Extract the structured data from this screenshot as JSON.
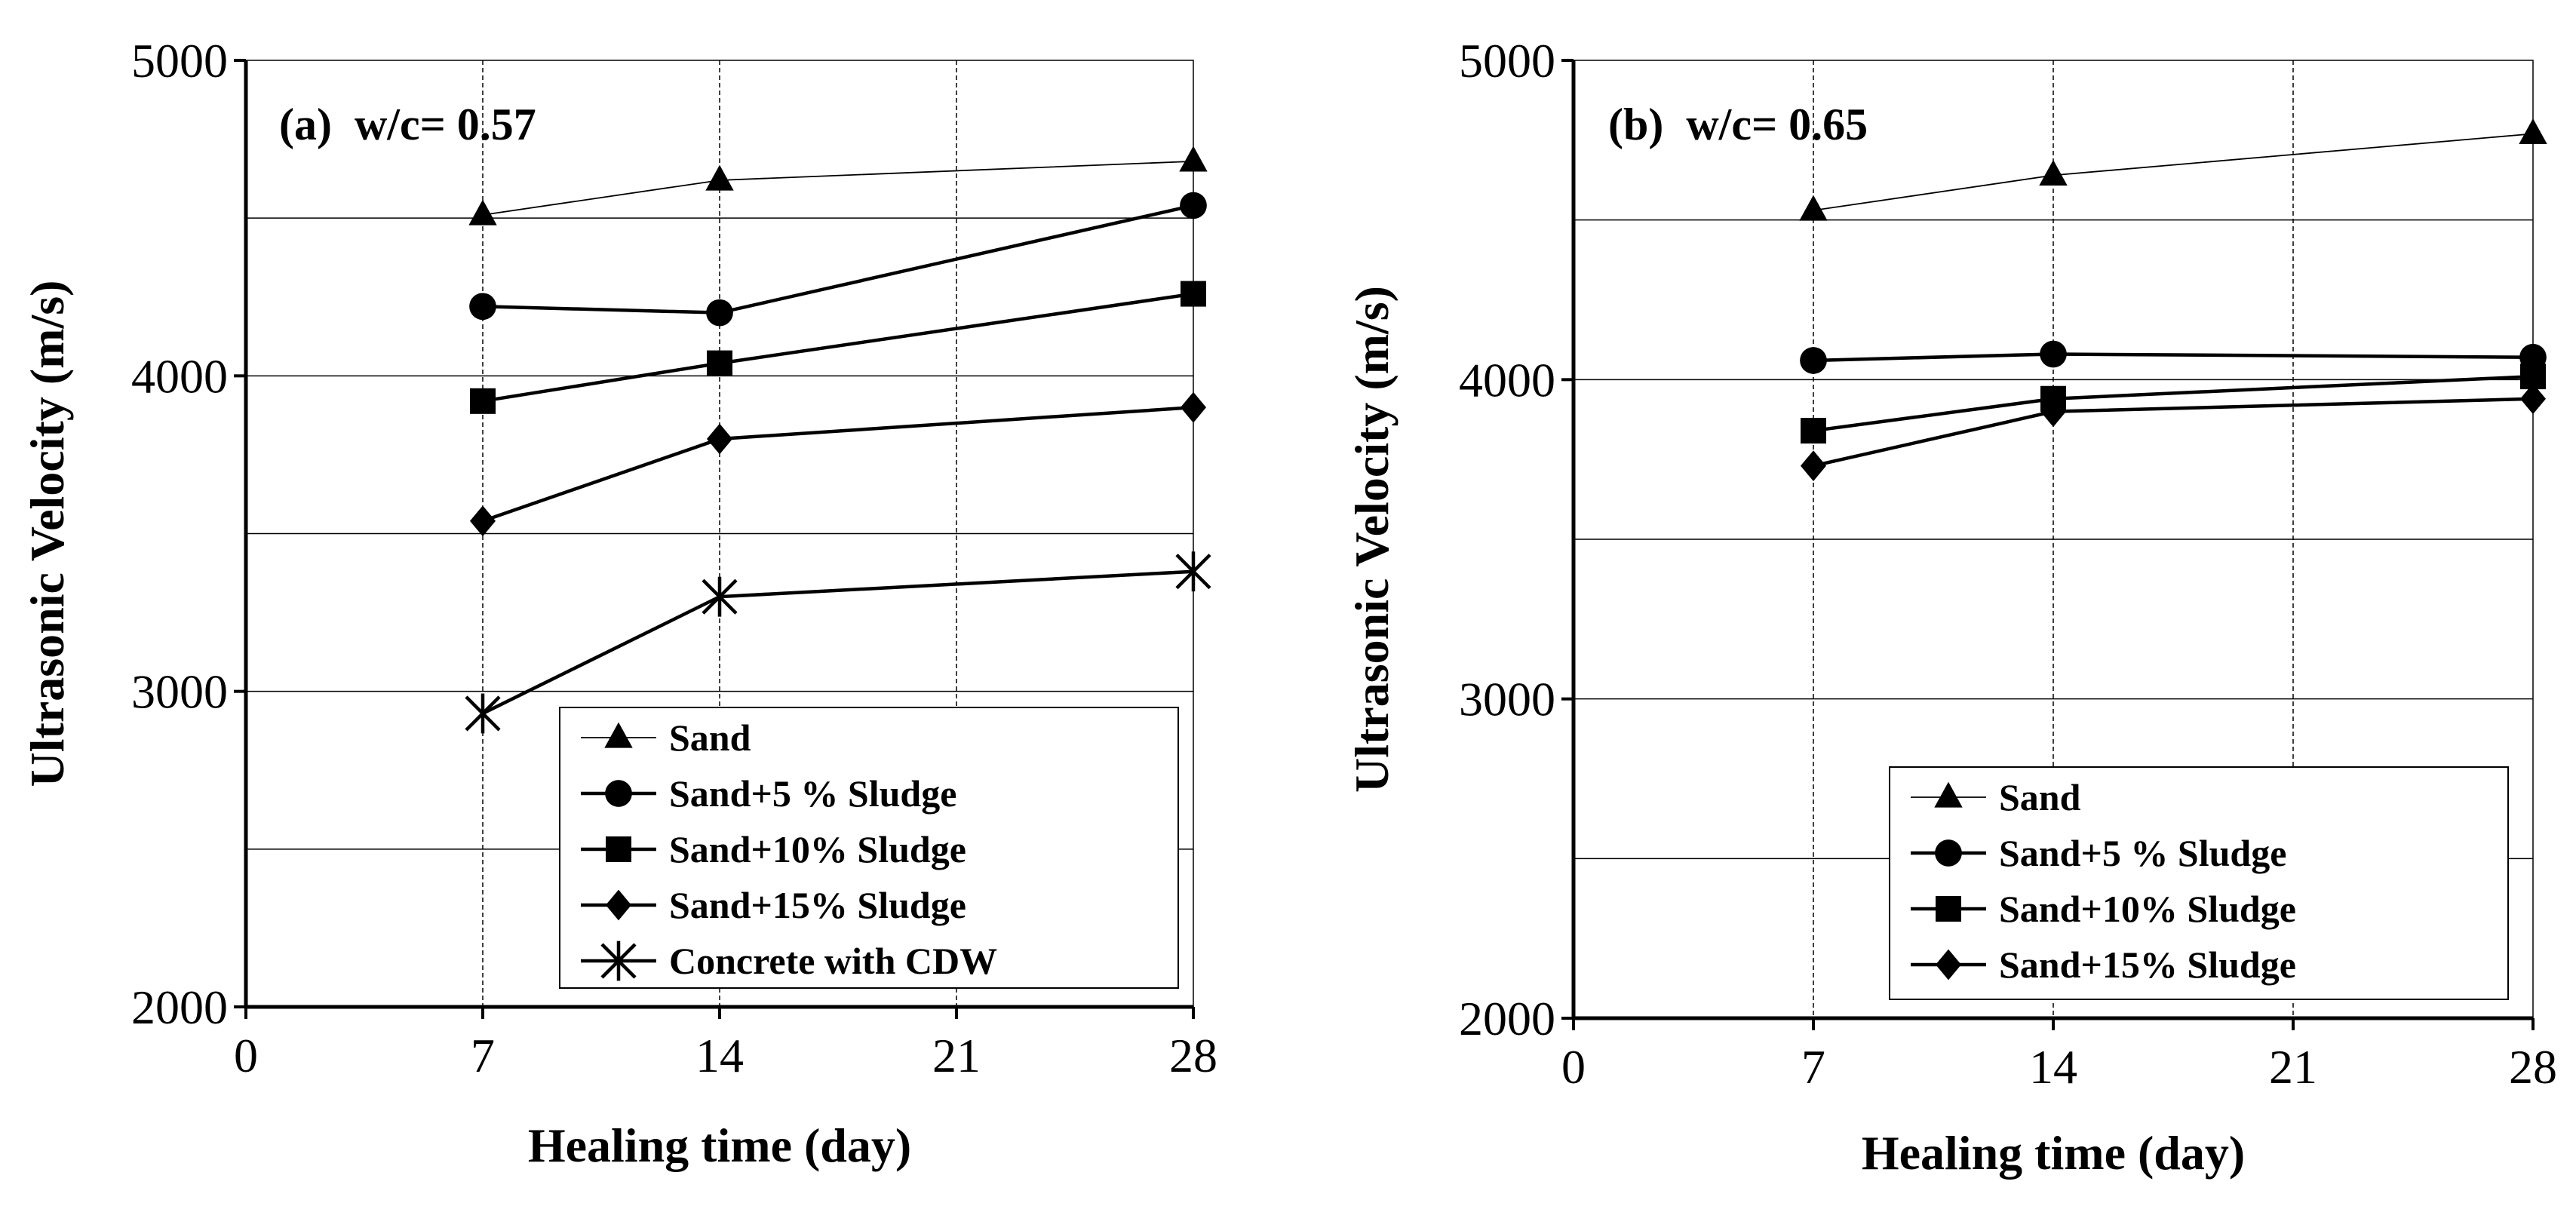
{
  "chart_data": [
    {
      "type": "line",
      "panel_label": "(a)  w/c= 0.57",
      "xlabel": "Healing time (day)",
      "ylabel": "Ultrasonic Velocity (m/s)",
      "xlim": [
        0,
        28
      ],
      "ylim": [
        2000,
        5000
      ],
      "x_ticks": [
        "0",
        "7",
        "14",
        "21",
        "28"
      ],
      "y_ticks": [
        "2000",
        "3000",
        "4000",
        "5000"
      ],
      "y_gridlines": [
        2500,
        3000,
        3500,
        4000,
        4500
      ],
      "x_gridlines": [
        7,
        14,
        21
      ],
      "grid": true,
      "legend_position": "bottom-right",
      "x": [
        7,
        14,
        28
      ],
      "series": [
        {
          "name": "Sand",
          "marker": "triangle",
          "line": "thin",
          "values": [
            4510,
            4620,
            4680
          ]
        },
        {
          "name": "Sand+5 % Sludge",
          "marker": "circle",
          "line": "thick",
          "values": [
            4220,
            4200,
            4540
          ]
        },
        {
          "name": "Sand+10% Sludge",
          "marker": "square",
          "line": "thick",
          "values": [
            3920,
            4040,
            4260
          ]
        },
        {
          "name": "Sand+15% Sludge",
          "marker": "diamond",
          "line": "thick",
          "values": [
            3540,
            3800,
            3900
          ]
        },
        {
          "name": "Concrete with CDW",
          "marker": "asterisk",
          "line": "thick",
          "values": [
            2930,
            3300,
            3380
          ]
        }
      ]
    },
    {
      "type": "line",
      "panel_label": "(b)  w/c= 0.65",
      "xlabel": "Healing time (day)",
      "ylabel": "Ultrasonic Velocity (m/s)",
      "xlim": [
        0,
        28
      ],
      "ylim": [
        2000,
        5000
      ],
      "x_ticks": [
        "0",
        "7",
        "14",
        "21",
        "28"
      ],
      "y_ticks": [
        "2000",
        "3000",
        "4000",
        "5000"
      ],
      "y_gridlines": [
        2500,
        3000,
        3500,
        4000,
        4500
      ],
      "x_gridlines": [
        7,
        14,
        21
      ],
      "grid": true,
      "legend_position": "bottom-right",
      "x": [
        7,
        14,
        28
      ],
      "series": [
        {
          "name": "Sand",
          "marker": "triangle",
          "line": "thin",
          "values": [
            4530,
            4640,
            4770
          ]
        },
        {
          "name": "Sand+5 % Sludge",
          "marker": "circle",
          "line": "thick",
          "values": [
            4060,
            4080,
            4070
          ]
        },
        {
          "name": "Sand+10% Sludge",
          "marker": "square",
          "line": "thick",
          "values": [
            3840,
            3940,
            4010
          ]
        },
        {
          "name": "Sand+15% Sludge",
          "marker": "diamond",
          "line": "thick",
          "values": [
            3730,
            3900,
            3940
          ]
        }
      ]
    }
  ]
}
